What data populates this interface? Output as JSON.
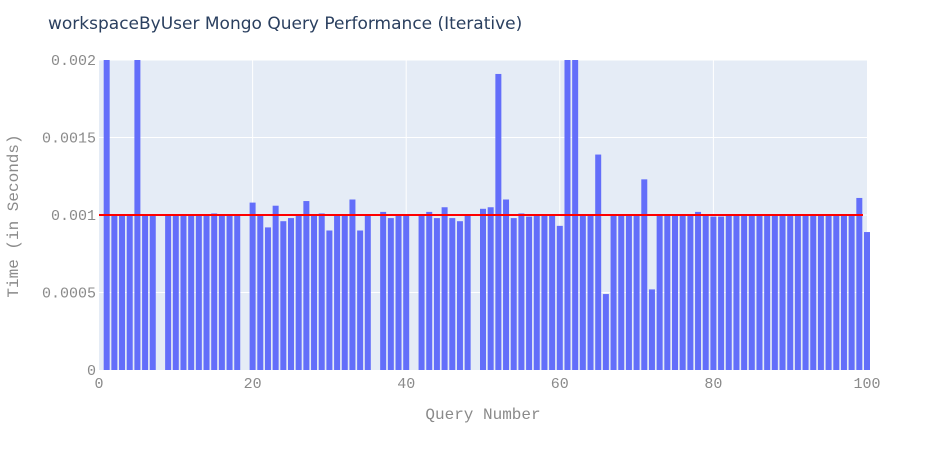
{
  "chart_data": {
    "type": "bar",
    "title": "workspaceByUser Mongo Query Performance (Iterative)",
    "xlabel": "Query Number",
    "ylabel": "Time (in Seconds)",
    "xlim": [
      0,
      100
    ],
    "ylim": [
      0,
      0.002
    ],
    "grid": true,
    "x_tick_labels": [
      "0",
      "20",
      "40",
      "60",
      "80",
      "100"
    ],
    "y_tick_labels": [
      "0",
      "0.0005",
      "0.001",
      "0.0015",
      "0.002"
    ],
    "bar_color": "#636efa",
    "reference_line": {
      "value": 0.001,
      "color": "#ff0000"
    },
    "x": [
      1,
      2,
      3,
      4,
      5,
      6,
      7,
      9,
      10,
      11,
      12,
      13,
      14,
      15,
      16,
      17,
      18,
      20,
      21,
      22,
      23,
      24,
      25,
      26,
      27,
      28,
      29,
      30,
      31,
      32,
      33,
      34,
      35,
      37,
      38,
      39,
      40,
      42,
      43,
      44,
      45,
      46,
      47,
      48,
      50,
      51,
      52,
      53,
      54,
      55,
      56,
      57,
      58,
      59,
      60,
      61,
      62,
      63,
      64,
      65,
      66,
      67,
      68,
      69,
      70,
      71,
      72,
      73,
      74,
      75,
      76,
      77,
      78,
      79,
      80,
      81,
      82,
      83,
      84,
      85,
      86,
      87,
      88,
      89,
      90,
      91,
      92,
      93,
      94,
      95,
      96,
      97,
      98,
      99,
      100
    ],
    "values": [
      0.002,
      0.001,
      0.001,
      0.001,
      0.002,
      0.001,
      0.001,
      0.001,
      0.001,
      0.001,
      0.001,
      0.001,
      0.001,
      0.00101,
      0.001,
      0.001,
      0.001,
      0.00108,
      0.001,
      0.00092,
      0.00106,
      0.00096,
      0.00098,
      0.001,
      0.00109,
      0.001,
      0.00101,
      0.0009,
      0.001,
      0.001,
      0.0011,
      0.0009,
      0.001,
      0.00102,
      0.00098,
      0.001,
      0.001,
      0.001,
      0.00102,
      0.00098,
      0.00105,
      0.00098,
      0.00096,
      0.001,
      0.00104,
      0.00105,
      0.00191,
      0.0011,
      0.00098,
      0.00101,
      0.00099,
      0.001,
      0.001,
      0.001,
      0.00093,
      0.002,
      0.002,
      0.001,
      0.001,
      0.00139,
      0.00049,
      0.001,
      0.001,
      0.001,
      0.001,
      0.00123,
      0.00052,
      0.001,
      0.001,
      0.001,
      0.001,
      0.001,
      0.00102,
      0.001,
      0.00099,
      0.00099,
      0.001,
      0.001,
      0.001,
      0.001,
      0.001,
      0.001,
      0.001,
      0.001,
      0.001,
      0.001,
      0.001,
      0.001,
      0.001,
      0.001,
      0.001,
      0.001,
      0.001,
      0.00111,
      0.00089
    ]
  }
}
